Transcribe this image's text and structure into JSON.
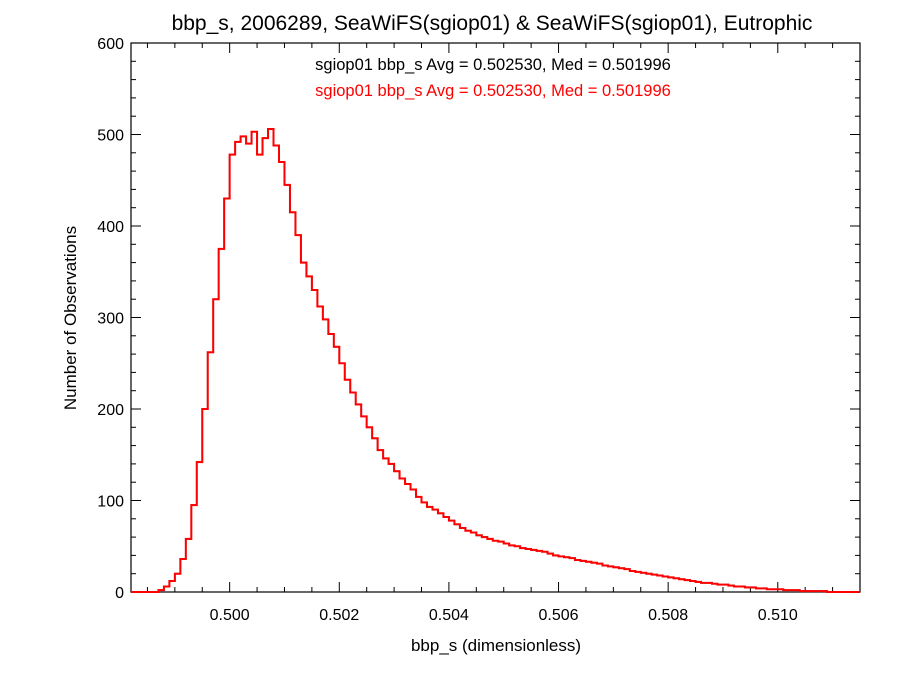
{
  "chart_data": {
    "type": "line",
    "title": "bbp_s, 2006289, SeaWiFS(sgiop01) & SeaWiFS(sgiop01), Eutrophic",
    "xlabel": "bbp_s (dimensionless)",
    "ylabel": "Number of Observations",
    "xlim": [
      0.4982,
      0.5115
    ],
    "ylim": [
      0,
      600
    ],
    "x_ticks": [
      0.5,
      0.502,
      0.504,
      0.506,
      0.508,
      0.51
    ],
    "x_tick_labels": [
      "0.500",
      "0.502",
      "0.504",
      "0.506",
      "0.508",
      "0.510"
    ],
    "y_ticks": [
      0,
      100,
      200,
      300,
      400,
      500,
      600
    ],
    "y_tick_labels": [
      "0",
      "100",
      "200",
      "300",
      "400",
      "500",
      "600"
    ],
    "annotations": [
      {
        "text": "sgiop01 bbp_s Avg = 0.502530, Med = 0.501996",
        "color": "#000000"
      },
      {
        "text": "sgiop01 bbp_s Avg = 0.502530, Med = 0.501996",
        "color": "#ff0000"
      }
    ],
    "colors": {
      "series_a": "#000000",
      "series_b": "#ff0000"
    },
    "step_histogram": true,
    "series": [
      {
        "x": [
          0.4982,
          0.4983,
          0.4984,
          0.4985,
          0.4986,
          0.4987,
          0.4988,
          0.4989,
          0.499,
          0.4991,
          0.4992,
          0.4993,
          0.4994,
          0.4995,
          0.4996,
          0.4997,
          0.4998,
          0.4999,
          0.5,
          0.5001,
          0.5002,
          0.5003,
          0.5004,
          0.5005,
          0.5006,
          0.5007,
          0.5008,
          0.5009,
          0.501,
          0.5011,
          0.5012,
          0.5013,
          0.5014,
          0.5015,
          0.5016,
          0.5017,
          0.5018,
          0.5019,
          0.502,
          0.5021,
          0.5022,
          0.5023,
          0.5024,
          0.5025,
          0.5026,
          0.5027,
          0.5028,
          0.5029,
          0.503,
          0.5031,
          0.5032,
          0.5033,
          0.5034,
          0.5035,
          0.5036,
          0.5037,
          0.5038,
          0.5039,
          0.504,
          0.5041,
          0.5042,
          0.5043,
          0.5044,
          0.5045,
          0.5046,
          0.5047,
          0.5048,
          0.5049,
          0.505,
          0.5051,
          0.5052,
          0.5053,
          0.5054,
          0.5055,
          0.5056,
          0.5057,
          0.5058,
          0.5059,
          0.506,
          0.5061,
          0.5062,
          0.5063,
          0.5064,
          0.5065,
          0.5066,
          0.5067,
          0.5068,
          0.5069,
          0.507,
          0.5071,
          0.5072,
          0.5073,
          0.5074,
          0.5075,
          0.5076,
          0.5077,
          0.5078,
          0.5079,
          0.508,
          0.5081,
          0.5082,
          0.5083,
          0.5084,
          0.5085,
          0.5086,
          0.5087,
          0.5088,
          0.5089,
          0.509,
          0.5091,
          0.5092,
          0.5093,
          0.5094,
          0.5095,
          0.5096,
          0.5097,
          0.5098,
          0.5099,
          0.51,
          0.5101,
          0.5102,
          0.5103,
          0.5104,
          0.5105,
          0.5106,
          0.5107,
          0.5108,
          0.5109,
          0.511,
          0.5111,
          0.5112,
          0.5113,
          0.5114,
          0.5115
        ],
        "y": [
          0,
          0,
          0,
          0,
          0,
          2,
          6,
          12,
          20,
          36,
          58,
          95,
          142,
          200,
          262,
          320,
          375,
          430,
          478,
          492,
          498,
          490,
          503,
          478,
          496,
          506,
          488,
          470,
          445,
          415,
          390,
          360,
          345,
          330,
          312,
          298,
          282,
          268,
          250,
          232,
          218,
          205,
          192,
          180,
          168,
          155,
          146,
          140,
          132,
          124,
          118,
          112,
          104,
          98,
          93,
          90,
          86,
          82,
          78,
          74,
          70,
          67,
          65,
          62,
          60,
          58,
          56,
          55,
          53,
          51,
          50,
          48,
          47,
          46,
          45,
          44,
          42,
          40,
          39,
          38,
          37,
          35,
          34,
          33,
          32,
          31,
          29,
          28,
          27,
          26,
          25,
          23,
          22,
          21,
          20,
          19,
          18,
          17,
          16,
          15,
          14,
          13,
          12,
          11,
          10,
          10,
          9,
          8,
          8,
          7,
          6,
          6,
          5,
          5,
          4,
          4,
          3,
          3,
          3,
          2,
          2,
          2,
          1,
          1,
          1,
          1,
          1,
          0,
          0,
          0,
          0,
          0,
          0,
          0
        ]
      }
    ]
  }
}
